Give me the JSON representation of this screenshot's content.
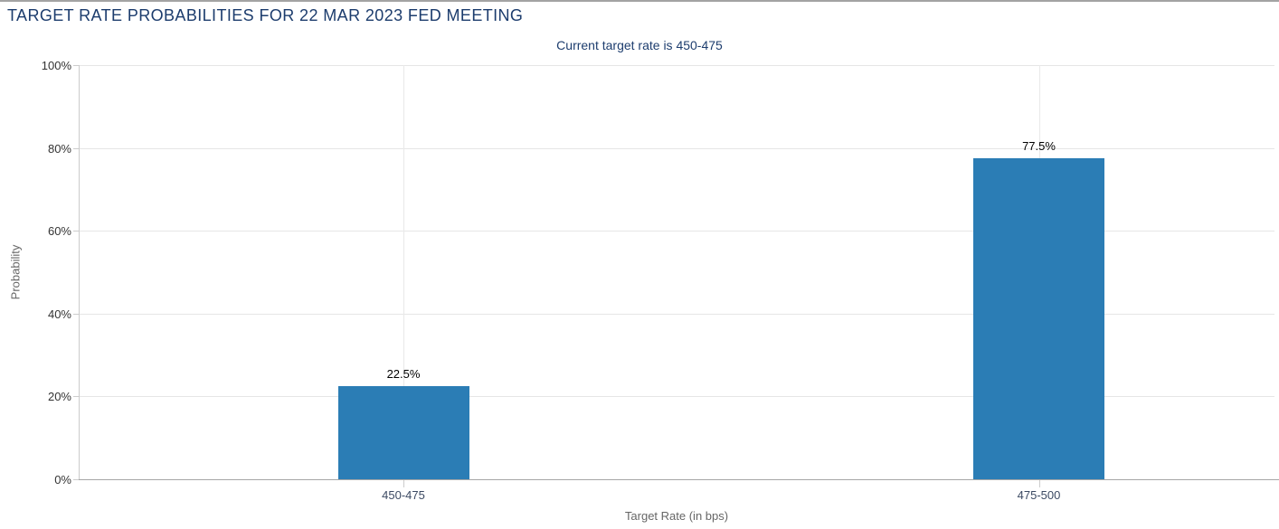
{
  "chart_data": {
    "type": "bar",
    "title": "TARGET RATE PROBABILITIES FOR 22 MAR 2023 FED MEETING",
    "subtitle": "Current target rate is 450-475",
    "categories": [
      "450-475",
      "475-500"
    ],
    "series": [
      {
        "name": "Probability",
        "values": [
          22.5,
          77.5
        ]
      }
    ],
    "data_labels": [
      "22.5%",
      "77.5%"
    ],
    "xlabel": "Target Rate (in bps)",
    "ylabel": "Probability",
    "ylim": [
      0,
      100
    ],
    "yticks": [
      0,
      20,
      40,
      60,
      80,
      100
    ],
    "ytick_labels": [
      "0%",
      "20%",
      "40%",
      "60%",
      "80%",
      "100%"
    ],
    "grid": true,
    "legend_position": "none",
    "colors": {
      "bar": "#2b7db5",
      "title": "#1c3c6d",
      "subtitle": "#1d3d6e",
      "axis_title": "#666666",
      "ytick_label": "#333333",
      "category_label": "#3c4a63",
      "gridline": "#e6e6e6",
      "axis_line": "#a6a6a6"
    }
  }
}
